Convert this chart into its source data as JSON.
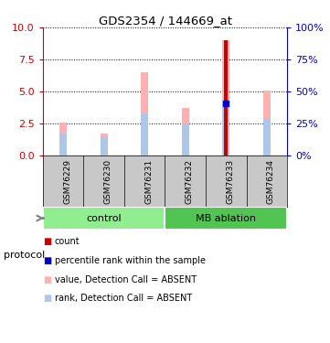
{
  "title": "GDS2354 / 144669_at",
  "samples": [
    "GSM76229",
    "GSM76230",
    "GSM76231",
    "GSM76232",
    "GSM76233",
    "GSM76234"
  ],
  "pink_values": [
    2.6,
    1.7,
    6.5,
    3.7,
    9.0,
    5.1
  ],
  "blue_rank_values": [
    1.7,
    1.4,
    3.3,
    2.5,
    4.1,
    2.9
  ],
  "red_count_values": [
    0,
    0,
    0,
    0,
    9.0,
    0
  ],
  "blue_dot_values": [
    0,
    0,
    0,
    0,
    4.1,
    0
  ],
  "ylim": [
    0,
    10
  ],
  "yticks_left": [
    0,
    2.5,
    5,
    7.5,
    10
  ],
  "yticks_right": [
    0,
    25,
    50,
    75,
    100
  ],
  "left_axis_color": "#cc0000",
  "right_axis_color": "#0000cc",
  "pink_color": "#ffb0b0",
  "blue_color": "#aec6e8",
  "red_color": "#cc0000",
  "dot_color": "#0000cc",
  "group_info": [
    {
      "name": "control",
      "indices": [
        0,
        1,
        2
      ],
      "color": "#90EE90"
    },
    {
      "name": "MB ablation",
      "indices": [
        3,
        4,
        5
      ],
      "color": "#52c452"
    }
  ],
  "sample_bg": "#c8c8c8",
  "bar_width": 0.18
}
